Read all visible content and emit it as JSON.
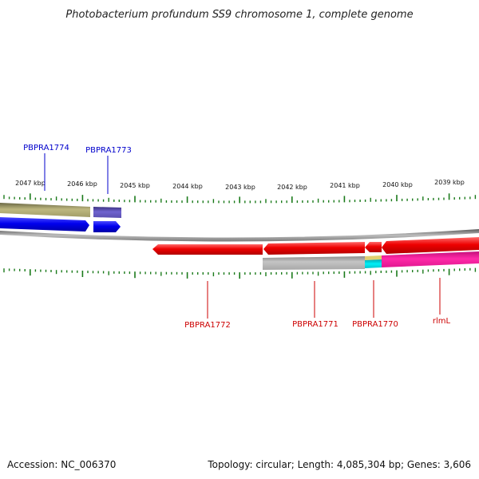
{
  "title": "Photobacterium profundum SS9 chromosome 1, complete genome",
  "footer": {
    "accession": "Accession: NC_006370",
    "summary": "Topology: circular; Length: 4,085,304 bp; Genes: 3,606"
  },
  "ruler": {
    "labels": [
      "2047 kbp",
      "2046 kbp",
      "2045 kbp",
      "2044 kbp",
      "2043 kbp",
      "2042 kbp",
      "2041 kbp",
      "2040 kbp",
      "2039 kbp"
    ]
  },
  "genes": [
    {
      "label": "PBPRA1774",
      "strand": "forward",
      "color": "#0000cc"
    },
    {
      "label": "PBPRA1773",
      "strand": "forward",
      "color": "#0000cc"
    },
    {
      "label": "PBPRA1772",
      "strand": "reverse",
      "color": "#cc0000"
    },
    {
      "label": "PBPRA1771",
      "strand": "reverse",
      "color": "#cc0000"
    },
    {
      "label": "PBPRA1770",
      "strand": "reverse",
      "color": "#cc0000"
    },
    {
      "label": "rlmL",
      "strand": "reverse",
      "color": "#cc0000"
    }
  ],
  "colors": {
    "forward_cds": "#0000ee",
    "reverse_cds": "#ee0000",
    "tick": "#1a7a1a",
    "backbone": "#888888",
    "gray_feature": "#b0b0b0",
    "khaki_feature": "#b8b27a",
    "slate_feature": "#6a5acd",
    "magenta_feature": "#ff2aa8",
    "cyan_feature": "#00e5ee"
  }
}
